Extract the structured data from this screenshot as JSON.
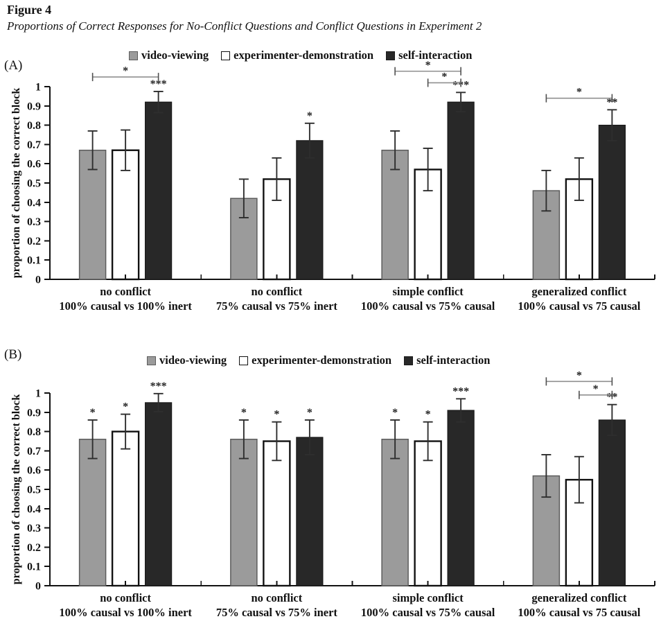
{
  "figure": {
    "number": "Figure 4",
    "caption": "Proportions of Correct Responses for No-Conflict Questions and Conflict Questions in Experiment 2"
  },
  "legend": {
    "items": [
      {
        "label": "video-viewing",
        "color": "#9b9b9b",
        "border": "#5c5c5c"
      },
      {
        "label": "experimenter-demonstration",
        "color": "#ffffff",
        "border": "#111111"
      },
      {
        "label": "self-interaction",
        "color": "#282828",
        "border": "#1a1a1a"
      }
    ]
  },
  "colors": {
    "axis": "#111111",
    "error_bar": "#2e2e2e",
    "bracket_line": "#8f8f8f",
    "bracket_end": "#4f4f4f",
    "text": "#111111"
  },
  "panels": [
    {
      "letter": "(A)"
    },
    {
      "letter": "(B)"
    }
  ],
  "chart_data": [
    {
      "type": "bar",
      "panel": "A",
      "title": "",
      "ylabel": "proportion of choosing the correct block",
      "xlabel": "",
      "ylim": [
        0,
        1
      ],
      "grid": false,
      "legend_position": "top",
      "yticks": [
        "0",
        "0.1",
        "0.2",
        "0.3",
        "0.4",
        "0.5",
        "0.6",
        "0.7",
        "0.8",
        "0.9",
        "1"
      ],
      "categories": [
        [
          "no conflict",
          "100% causal vs 100% inert"
        ],
        [
          "no conflict",
          "75% causal vs 75% inert"
        ],
        [
          "simple conflict",
          "100% causal vs 75% causal"
        ],
        [
          "generalized conflict",
          "100% causal vs 75 causal"
        ]
      ],
      "series": [
        {
          "name": "video-viewing",
          "values": [
            0.67,
            0.42,
            0.67,
            0.46
          ],
          "errors": [
            0.1,
            0.1,
            0.1,
            0.105
          ],
          "sig": [
            "",
            "",
            "",
            ""
          ]
        },
        {
          "name": "experimenter-demonstration",
          "values": [
            0.67,
            0.52,
            0.57,
            0.52
          ],
          "errors": [
            0.105,
            0.11,
            0.11,
            0.11
          ],
          "sig": [
            "",
            "",
            "",
            ""
          ]
        },
        {
          "name": "self-interaction",
          "values": [
            0.92,
            0.72,
            0.92,
            0.8
          ],
          "errors": [
            0.055,
            0.09,
            0.05,
            0.08
          ],
          "sig": [
            "***",
            "*",
            "***",
            "**"
          ]
        }
      ],
      "brackets": [
        {
          "group": 0,
          "from": 0,
          "to": 2,
          "y": 1.05,
          "label": "*"
        },
        {
          "group": 2,
          "from": 0,
          "to": 2,
          "y": 1.08,
          "label": "*"
        },
        {
          "group": 2,
          "from": 1,
          "to": 2,
          "y": 1.02,
          "label": "*"
        },
        {
          "group": 3,
          "from": 0,
          "to": 2,
          "y": 0.94,
          "label": "*"
        }
      ]
    },
    {
      "type": "bar",
      "panel": "B",
      "title": "",
      "ylabel": "proportion of choosing the correct block",
      "xlabel": "",
      "ylim": [
        0,
        1
      ],
      "grid": false,
      "legend_position": "top",
      "yticks": [
        "0",
        "0.1",
        "0.2",
        "0.3",
        "0.4",
        "0.5",
        "0.6",
        "0.7",
        "0.8",
        "0.9",
        "1"
      ],
      "categories": [
        [
          "no conflict",
          "100% causal vs 100% inert"
        ],
        [
          "no conflict",
          "75% causal vs 75% inert"
        ],
        [
          "simple conflict",
          "100% causal vs 75% causal"
        ],
        [
          "generalized conflict",
          "100% causal vs 75 causal"
        ]
      ],
      "series": [
        {
          "name": "video-viewing",
          "values": [
            0.76,
            0.76,
            0.76,
            0.57
          ],
          "errors": [
            0.1,
            0.1,
            0.1,
            0.11
          ],
          "sig": [
            "*",
            "*",
            "*",
            ""
          ]
        },
        {
          "name": "experimenter-demonstration",
          "values": [
            0.8,
            0.75,
            0.75,
            0.55
          ],
          "errors": [
            0.09,
            0.1,
            0.1,
            0.12
          ],
          "sig": [
            "*",
            "*",
            "*",
            ""
          ]
        },
        {
          "name": "self-interaction",
          "values": [
            0.95,
            0.77,
            0.91,
            0.86
          ],
          "errors": [
            0.047,
            0.09,
            0.06,
            0.08
          ],
          "sig": [
            "***",
            "*",
            "***",
            "**"
          ]
        }
      ],
      "brackets": [
        {
          "group": 3,
          "from": 0,
          "to": 2,
          "y": 1.06,
          "label": "*"
        },
        {
          "group": 3,
          "from": 1,
          "to": 2,
          "y": 0.99,
          "label": "*"
        }
      ]
    }
  ]
}
